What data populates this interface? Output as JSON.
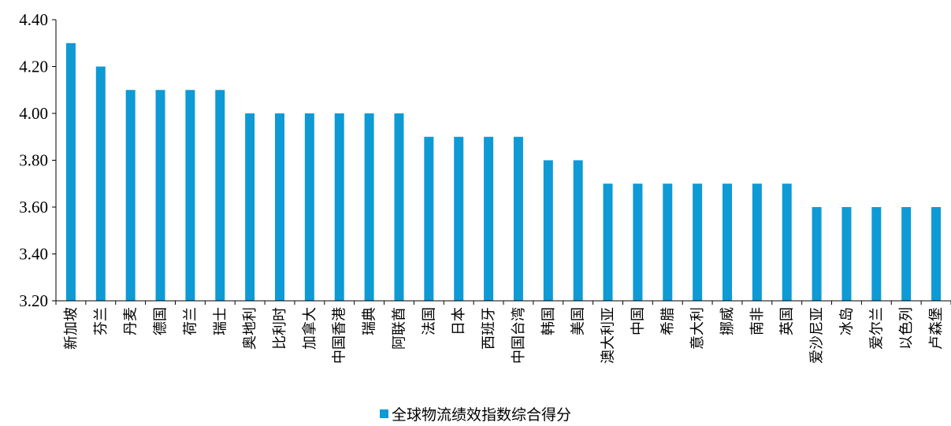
{
  "chart_data": {
    "type": "bar",
    "title": "",
    "xlabel": "",
    "ylabel": "",
    "ylim": [
      3.2,
      4.4
    ],
    "yticks": [
      "3.20",
      "3.40",
      "3.60",
      "3.80",
      "4.00",
      "4.20",
      "4.40"
    ],
    "grid": false,
    "legend_position": "bottom",
    "categories": [
      "新加坡",
      "芬兰",
      "丹麦",
      "德国",
      "荷兰",
      "瑞士",
      "奥地利",
      "比利时",
      "加拿大",
      "中国香港",
      "瑞典",
      "阿联酋",
      "法国",
      "日本",
      "西班牙",
      "中国台湾",
      "韩国",
      "美国",
      "澳大利亚",
      "中国",
      "希腊",
      "意大利",
      "挪威",
      "南非",
      "英国",
      "爱沙尼亚",
      "冰岛",
      "爱尔兰",
      "以色列",
      "卢森堡"
    ],
    "series": [
      {
        "name": "全球物流绩效指数综合得分",
        "color": "#0e9ad5",
        "values": [
          4.3,
          4.2,
          4.1,
          4.1,
          4.1,
          4.1,
          4.0,
          4.0,
          4.0,
          4.0,
          4.0,
          4.0,
          3.9,
          3.9,
          3.9,
          3.9,
          3.8,
          3.8,
          3.7,
          3.7,
          3.7,
          3.7,
          3.7,
          3.7,
          3.7,
          3.6,
          3.6,
          3.6,
          3.6,
          3.6
        ]
      }
    ]
  }
}
